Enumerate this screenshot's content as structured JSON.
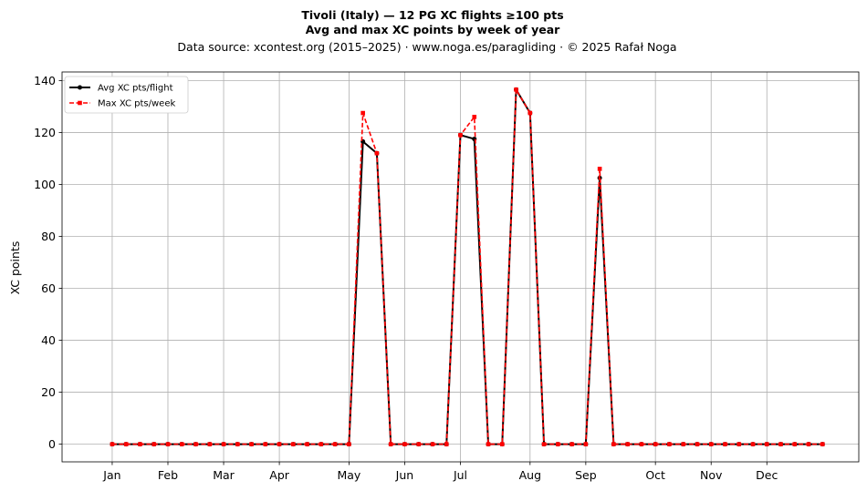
{
  "chart_data": {
    "type": "line",
    "title_line1": "Tivoli (Italy)  —  12 PG XC flights ≥100 pts",
    "title_line2": "Avg and max XC points by week of year",
    "subtitle": "Data source: xcontest.org (2015–2025)  ·  www.noga.es/paragliding  ·  © 2025 Rafał Noga",
    "xlabel": "",
    "ylabel": "XC points",
    "ylim": [
      -6.8,
      143.3
    ],
    "xlim": [
      -2.6,
      54.6
    ],
    "yticks": [
      "0",
      "20",
      "40",
      "60",
      "80",
      "100",
      "120",
      "140"
    ],
    "xticks": [
      {
        "label": "Jan",
        "week": 1
      },
      {
        "label": "Feb",
        "week": 5
      },
      {
        "label": "Mar",
        "week": 9
      },
      {
        "label": "Apr",
        "week": 13
      },
      {
        "label": "May",
        "week": 18
      },
      {
        "label": "Jun",
        "week": 22
      },
      {
        "label": "Jul",
        "week": 26
      },
      {
        "label": "Aug",
        "week": 31
      },
      {
        "label": "Sep",
        "week": 35
      },
      {
        "label": "Oct",
        "week": 40
      },
      {
        "label": "Nov",
        "week": 44
      },
      {
        "label": "Dec",
        "week": 48
      }
    ],
    "grid": true,
    "legend_position": "top-left",
    "x": [
      1,
      2,
      3,
      4,
      5,
      6,
      7,
      8,
      9,
      10,
      11,
      12,
      13,
      14,
      15,
      16,
      17,
      18,
      19,
      20,
      21,
      22,
      23,
      24,
      25,
      26,
      27,
      28,
      29,
      30,
      31,
      32,
      33,
      34,
      35,
      36,
      37,
      38,
      39,
      40,
      41,
      42,
      43,
      44,
      45,
      46,
      47,
      48,
      49,
      50,
      51,
      52
    ],
    "series": [
      {
        "name": "Avg XC pts/flight",
        "color": "#000000",
        "style": "solid",
        "marker": "circle",
        "values": [
          0,
          0,
          0,
          0,
          0,
          0,
          0,
          0,
          0,
          0,
          0,
          0,
          0,
          0,
          0,
          0,
          0,
          0,
          116.5,
          112,
          0,
          0,
          0,
          0,
          0,
          119,
          117.5,
          0,
          0,
          136.5,
          127.5,
          0,
          0,
          0,
          0,
          102.5,
          0,
          0,
          0,
          0,
          0,
          0,
          0,
          0,
          0,
          0,
          0,
          0,
          0,
          0,
          0,
          0
        ]
      },
      {
        "name": "Max XC pts/week",
        "color": "#ff0000",
        "style": "dashed",
        "marker": "square",
        "values": [
          0,
          0,
          0,
          0,
          0,
          0,
          0,
          0,
          0,
          0,
          0,
          0,
          0,
          0,
          0,
          0,
          0,
          0,
          127.5,
          112,
          0,
          0,
          0,
          0,
          0,
          119,
          126,
          0,
          0,
          136.5,
          127.5,
          0,
          0,
          0,
          0,
          106,
          0,
          0,
          0,
          0,
          0,
          0,
          0,
          0,
          0,
          0,
          0,
          0,
          0,
          0,
          0,
          0
        ]
      }
    ]
  }
}
